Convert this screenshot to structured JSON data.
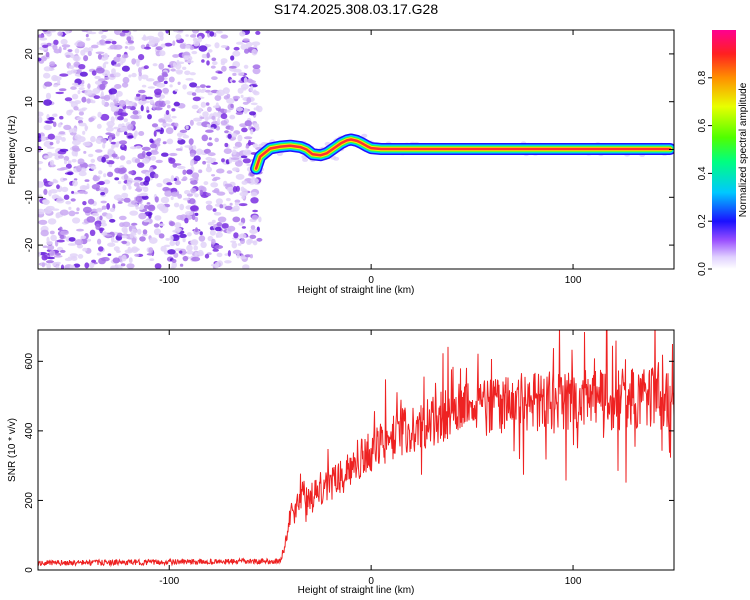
{
  "title": "S174.2025.308.03.17.G28",
  "chart_data": [
    {
      "type": "heatmap",
      "name": "spectrogram",
      "xlabel": "Height of straight line (km)",
      "ylabel": "Frequency (Hz)",
      "xlim": [
        -165,
        150
      ],
      "ylim": [
        -25,
        25
      ],
      "x_ticks": [
        -100,
        0,
        100
      ],
      "y_ticks": [
        -20,
        -10,
        0,
        10,
        20
      ],
      "noise_region_x": [
        -165,
        -55
      ],
      "noise_region_colors": [
        "#e2d4f8",
        "#c9a8f2",
        "#a56ee8",
        "#7a2ee0",
        "#5a10d8"
      ],
      "peak_frequency_trace": {
        "x": [
          -57,
          -55,
          -50,
          -45,
          -40,
          -35,
          -32,
          -29,
          -25,
          -22,
          -18,
          -15,
          -12,
          -10,
          -7,
          -5,
          -2,
          0,
          5,
          20,
          50,
          80,
          110,
          130,
          148
        ],
        "y": [
          -4,
          -1.5,
          0.2,
          0.6,
          0.8,
          0.5,
          0,
          -1,
          -1.2,
          -0.8,
          0.4,
          1.3,
          1.9,
          2.1,
          1.8,
          1.4,
          0.7,
          0.3,
          0.1,
          0.1,
          0.1,
          0.1,
          0.1,
          0.1,
          0.1
        ]
      },
      "colorbar": {
        "label": "Normalized spectral amplitude",
        "range": [
          0,
          1
        ],
        "ticks": [
          "0.0",
          "0.2",
          "0.4",
          "0.6",
          "0.8"
        ],
        "tick_values": [
          0,
          0.2,
          0.4,
          0.6,
          0.8
        ]
      }
    },
    {
      "type": "line",
      "name": "snr",
      "xlabel": "Height of straight line (km)",
      "ylabel": "SNR (10 * v/v)",
      "xlim": [
        -165,
        150
      ],
      "ylim": [
        0,
        690
      ],
      "x_ticks": [
        -100,
        0,
        100
      ],
      "y_ticks": [
        0,
        200,
        400,
        600
      ],
      "color": "#ee2222",
      "baseline_points": {
        "x": [
          -165,
          -45,
          -43,
          -40,
          -35,
          -30,
          -25,
          -20,
          -15,
          -10,
          -5,
          0,
          10,
          20,
          30,
          40,
          60,
          80,
          100,
          120,
          140,
          150
        ],
        "y": [
          20,
          25,
          60,
          160,
          200,
          210,
          230,
          250,
          270,
          300,
          320,
          340,
          380,
          410,
          430,
          450,
          470,
          480,
          490,
          490,
          495,
          480
        ]
      }
    }
  ],
  "icons": {
    "accent": "#ee2222"
  }
}
